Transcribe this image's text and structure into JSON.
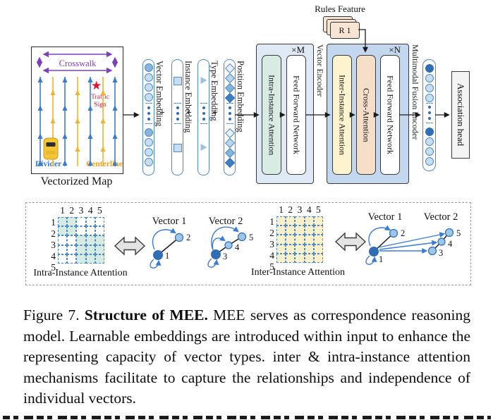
{
  "figure": {
    "caption": {
      "prefix": "Figure 7. ",
      "bold": "Structure of MEE. ",
      "body": "MEE serves as correspondence reasoning model. Learnable embeddings are introduced within input to enhance the representing capacity of vector types. inter & intra-instance attention mechanisms facilitate to capture the relationships and independence of individual vectors."
    }
  },
  "map": {
    "title": "Vectorized Map",
    "crosswalk_label": "Crosswalk",
    "star": "★",
    "traffic_sign_line1": "Traffic",
    "traffic_sign_line2": "Sign",
    "divider_label": "Divider",
    "centerline_label": "Centerline"
  },
  "embeddings": {
    "plus": "+",
    "columns": [
      {
        "label": "Vector Embedding"
      },
      {
        "label": "Instance Embedding"
      },
      {
        "label": "Type Embedding"
      },
      {
        "label": "Position Embedding"
      }
    ]
  },
  "vector_encoder": {
    "label": "Vector Encoder",
    "repeat": "×M",
    "intra_label": "Intra-Instance Attention",
    "ffn_label": "Feed Forward Network"
  },
  "fusion_encoder": {
    "label": "Multimodal Fusion Encoder",
    "repeat": "×N",
    "inter_label": "Inter-Instance Attention",
    "cross_label": "Cross-Attention",
    "ffn_label": "Feed Forward Network"
  },
  "rules": {
    "label": "Rules Feature",
    "card_label": "R 1"
  },
  "association": {
    "label": "Association head"
  },
  "attention_demo": {
    "col_numbers": [
      "1",
      "2",
      "3",
      "4",
      "5"
    ],
    "row_numbers": [
      "1",
      "2",
      "3",
      "4",
      "5"
    ],
    "intra": {
      "label": "Intra-Instance Attention",
      "pattern": [
        "11000",
        "11000",
        "00111",
        "00111",
        "00111"
      ]
    },
    "inter": {
      "label": "Inter-Instance Attention",
      "pattern": [
        "11111",
        "11111",
        "11111",
        "11111",
        "11111"
      ]
    },
    "vector1_label": "Vector 1",
    "vector2_label": "Vector 2",
    "vector1_nodes": [
      "1",
      "2"
    ],
    "vector2_nodes": [
      "3",
      "4",
      "5"
    ]
  },
  "colors": {
    "column_border": "#4e8ac9",
    "token_light": "#c7ddf0",
    "token_medium": "#8ab4dc",
    "token_dark": "#2f6db5",
    "encoder1_fill": "#dfe9f6",
    "encoder2_fill": "#c3d8ee",
    "intra_fill": "#d9ece4",
    "inter_fill": "#fdf3cf",
    "cross_fill": "#f5dfc9",
    "rules_card_fill": "#f7e4d3",
    "association_fill": "#f4f4f4",
    "teal_cell": "#d6ebe2",
    "cream_cell": "#faf0cb",
    "lane_blue": "#3b7bd4",
    "lane_yellow": "#f2b233",
    "crosswalk_purple": "#7d3fbf",
    "traffic_red": "#e8112d",
    "arrow_blue": "#3b7bd4"
  }
}
